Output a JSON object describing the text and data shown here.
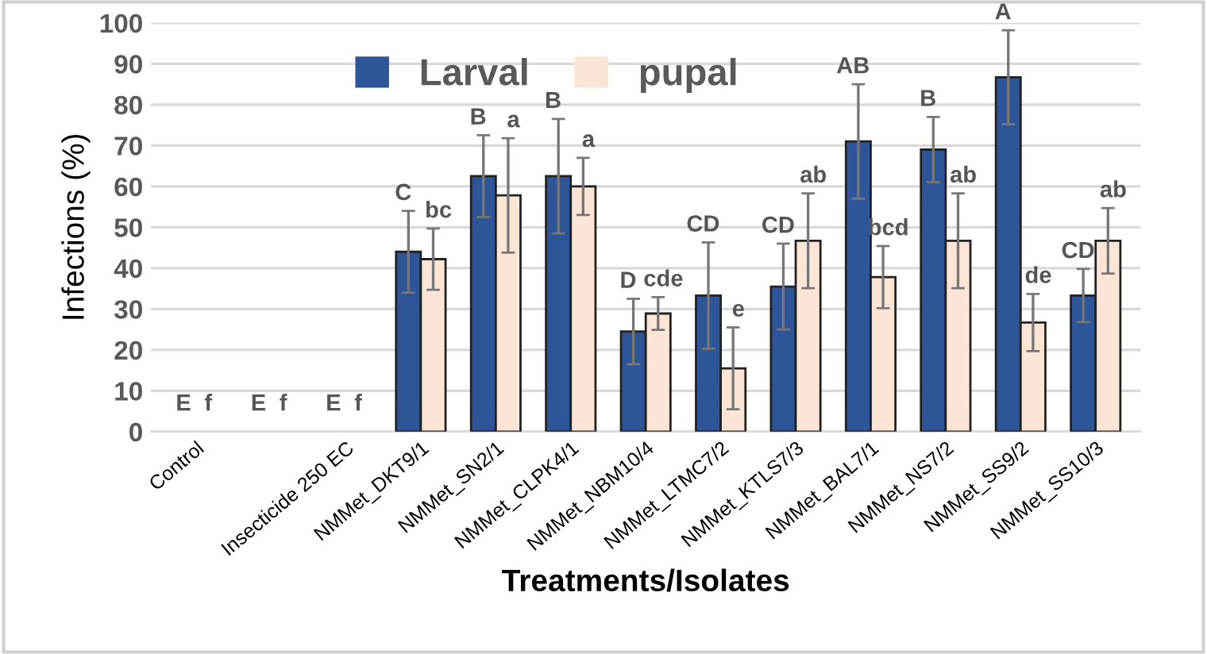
{
  "chart_data": {
    "type": "bar",
    "xlabel": "Treatments/Isolates",
    "ylabel": "Infections (%)",
    "categories": [
      "Control",
      null,
      "Insecticide 250 EC",
      "NMMet_DKT9/1",
      "NMMet_SN2/1",
      "NMMet_CLPK4/1",
      "NMMet_NBM10/4",
      "NMMet_LTMC7/2",
      "NMMet_KTLS7/3",
      "NMMet_BAL7/1",
      "NMMet_NS7/2",
      "NMMet_SS9/2",
      "NMMet_SS10/3"
    ],
    "series": [
      {
        "name": "Larval",
        "color": "#2e5597",
        "values": [
          0,
          0,
          0,
          44,
          62.5,
          62.5,
          24.5,
          33.3,
          35.5,
          71,
          69,
          86.7,
          33.3
        ],
        "errors": [
          null,
          null,
          null,
          10,
          10,
          14,
          8,
          13,
          10.5,
          14,
          8,
          11.5,
          6.5
        ],
        "value_labels": [
          "E",
          "E",
          "E",
          "C",
          "B",
          "B",
          "D",
          "CD",
          "CD",
          "AB",
          "B",
          "A",
          "CD"
        ]
      },
      {
        "name": "pupal",
        "color": "#fbe5d6",
        "values": [
          0,
          0,
          0,
          42.2,
          57.8,
          60,
          28.9,
          15.5,
          46.7,
          37.8,
          46.7,
          26.7,
          46.7
        ],
        "errors": [
          null,
          null,
          null,
          7.5,
          14,
          7,
          4,
          10,
          11.6,
          7.6,
          11.6,
          7,
          8
        ],
        "value_labels": [
          "f",
          "f",
          "f",
          "bc",
          "a",
          "a",
          "cde",
          "e",
          "ab",
          "bcd",
          "ab",
          "de",
          "ab"
        ]
      }
    ],
    "ylim": [
      0,
      100
    ],
    "yticks": [
      0,
      10,
      20,
      30,
      40,
      50,
      60,
      70,
      80,
      90,
      100
    ],
    "grid": "y",
    "legend": "top"
  }
}
